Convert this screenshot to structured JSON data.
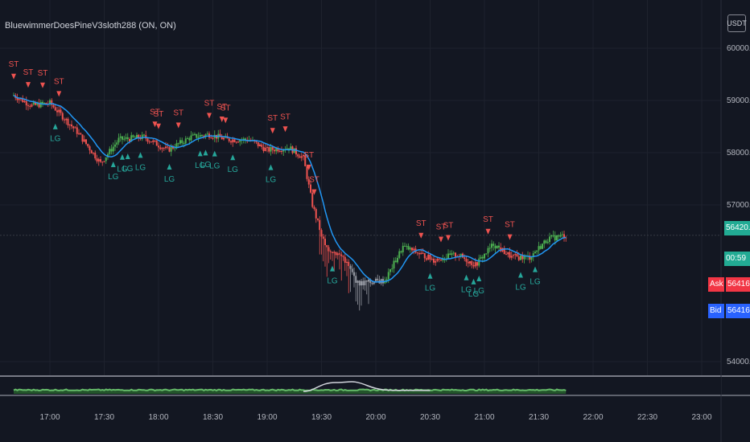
{
  "legend": {
    "title": "BluewimmerDoesPineV3sloth288 (ON, ON)"
  },
  "currency": "USDT",
  "price_badges": {
    "last": "56420.00",
    "countdown": "00:59",
    "ask_label": "Ask",
    "ask": "56416.94",
    "bid_label": "Bid",
    "bid": "56416.26"
  },
  "colors": {
    "background": "#131722",
    "bull": "#4caf50",
    "bear": "#ef5350",
    "neutral": "#9598a1",
    "ma": "#2962ff",
    "ask": "#f23645",
    "bid": "#2962ff",
    "last": "#22ab94"
  },
  "chart_data": {
    "type": "candlestick",
    "y_ticks": [
      54000,
      57000,
      58000,
      59000,
      60000
    ],
    "y_tick_labels": [
      "54000.00",
      "57000.00",
      "58000.00",
      "59000.00",
      "60000.00"
    ],
    "ylim": [
      53600,
      60600
    ],
    "x_ticks": [
      "17:00",
      "17:30",
      "18:00",
      "18:30",
      "19:00",
      "19:30",
      "20:00",
      "20:30",
      "21:00",
      "21:30",
      "22:00",
      "22:30",
      "23:00"
    ],
    "price_path": [
      [
        "16:40",
        59100
      ],
      [
        "16:50",
        58900
      ],
      [
        "17:00",
        58950
      ],
      [
        "17:15",
        58400
      ],
      [
        "17:28",
        57800
      ],
      [
        "17:38",
        58250
      ],
      [
        "17:52",
        58300
      ],
      [
        "18:05",
        58050
      ],
      [
        "18:18",
        58300
      ],
      [
        "18:28",
        58350
      ],
      [
        "18:38",
        58250
      ],
      [
        "18:50",
        58250
      ],
      [
        "19:00",
        58050
      ],
      [
        "19:12",
        58100
      ],
      [
        "19:20",
        57900
      ],
      [
        "19:25",
        57000
      ],
      [
        "19:32",
        56200
      ],
      [
        "19:42",
        56000
      ],
      [
        "19:50",
        55500
      ],
      [
        "20:05",
        55550
      ],
      [
        "20:15",
        56200
      ],
      [
        "20:32",
        55950
      ],
      [
        "20:45",
        56050
      ],
      [
        "20:55",
        55850
      ],
      [
        "21:05",
        56250
      ],
      [
        "21:15",
        56000
      ],
      [
        "21:25",
        56000
      ],
      [
        "21:35",
        56350
      ],
      [
        "21:45",
        56420
      ]
    ],
    "markers": [
      {
        "t": "16:40",
        "label": "ST"
      },
      {
        "t": "16:48",
        "label": "ST"
      },
      {
        "t": "16:56",
        "label": "ST"
      },
      {
        "t": "17:05",
        "label": "ST"
      },
      {
        "t": "17:03",
        "label": "LG"
      },
      {
        "t": "17:35",
        "label": "LG"
      },
      {
        "t": "17:40",
        "label": "LG"
      },
      {
        "t": "17:43",
        "label": "LG"
      },
      {
        "t": "17:50",
        "label": "LG"
      },
      {
        "t": "18:06",
        "label": "LG"
      },
      {
        "t": "17:58",
        "label": "ST"
      },
      {
        "t": "18:00",
        "label": "ST"
      },
      {
        "t": "18:11",
        "label": "ST"
      },
      {
        "t": "18:28",
        "label": "ST"
      },
      {
        "t": "18:35",
        "label": "ST"
      },
      {
        "t": "18:37",
        "label": "ST"
      },
      {
        "t": "18:23",
        "label": "LG"
      },
      {
        "t": "18:26",
        "label": "LG"
      },
      {
        "t": "18:31",
        "label": "LG"
      },
      {
        "t": "18:41",
        "label": "LG"
      },
      {
        "t": "19:03",
        "label": "ST"
      },
      {
        "t": "19:10",
        "label": "ST"
      },
      {
        "t": "19:02",
        "label": "LG"
      },
      {
        "t": "19:23",
        "label": "ST"
      },
      {
        "t": "19:26",
        "label": "ST"
      },
      {
        "t": "19:36",
        "label": "LG"
      },
      {
        "t": "20:25",
        "label": "ST"
      },
      {
        "t": "20:36",
        "label": "ST"
      },
      {
        "t": "20:40",
        "label": "ST"
      },
      {
        "t": "20:30",
        "label": "LG"
      },
      {
        "t": "20:50",
        "label": "LG"
      },
      {
        "t": "20:54",
        "label": "LG"
      },
      {
        "t": "20:57",
        "label": "LG"
      },
      {
        "t": "21:02",
        "label": "ST"
      },
      {
        "t": "21:14",
        "label": "ST"
      },
      {
        "t": "21:20",
        "label": "LG"
      },
      {
        "t": "21:28",
        "label": "LG"
      }
    ]
  }
}
